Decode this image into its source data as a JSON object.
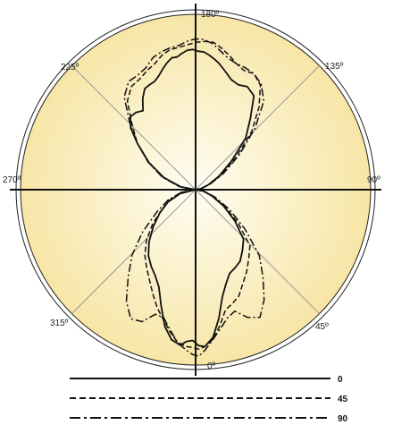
{
  "chart_data": {
    "type": "polar",
    "title": "",
    "angle_labels": [
      {
        "angle": 180,
        "text": "180º"
      },
      {
        "angle": 135,
        "text": "135º"
      },
      {
        "angle": 90,
        "text": "90º"
      },
      {
        "angle": 45,
        "text": "45º"
      },
      {
        "angle": 0,
        "text": "0º"
      },
      {
        "angle": 315,
        "text": "315º"
      },
      {
        "angle": 270,
        "text": "270º"
      },
      {
        "angle": 225,
        "text": "225º"
      }
    ],
    "grid_lines_degrees": [
      0,
      45,
      90,
      135
    ],
    "series": [
      {
        "name": "0",
        "style": "solid",
        "lobes": {
          "top": [
            [
              0,
              0
            ],
            [
              6,
              10
            ],
            [
              12,
              26
            ],
            [
              18,
              50
            ],
            [
              24,
              80
            ],
            [
              30,
              118
            ],
            [
              36,
              138
            ],
            [
              42,
              160
            ],
            [
              48,
              158
            ],
            [
              54,
              148
            ],
            [
              60,
              145
            ],
            [
              66,
              148
            ],
            [
              72,
              152
            ],
            [
              76,
              154
            ],
            [
              80,
              156
            ],
            [
              84,
              158
            ],
            [
              88,
              158
            ],
            [
              92,
              160
            ],
            [
              96,
              160
            ],
            [
              100,
              158
            ],
            [
              104,
              156
            ],
            [
              108,
              158
            ],
            [
              112,
              156
            ],
            [
              116,
              153
            ],
            [
              120,
              150
            ],
            [
              124,
              149
            ],
            [
              128,
              152
            ],
            [
              132,
              155
            ],
            [
              136,
              150
            ],
            [
              140,
              140
            ],
            [
              144,
              150
            ],
            [
              148,
              157
            ],
            [
              152,
              150
            ],
            [
              156,
              130
            ],
            [
              162,
              100
            ],
            [
              168,
              66
            ],
            [
              174,
              30
            ],
            [
              180,
              0
            ]
          ],
          "bottom": [
            [
              0,
              0
            ],
            [
              6,
              16
            ],
            [
              12,
              34
            ],
            [
              18,
              60
            ],
            [
              24,
              88
            ],
            [
              30,
              113
            ],
            [
              36,
              118
            ],
            [
              42,
              122
            ],
            [
              48,
              120
            ],
            [
              54,
              118
            ],
            [
              60,
              124
            ],
            [
              66,
              134
            ],
            [
              72,
              154
            ],
            [
              78,
              172
            ],
            [
              84,
              180
            ],
            [
              88,
              178
            ],
            [
              92,
              172
            ],
            [
              96,
              174
            ],
            [
              100,
              180
            ],
            [
              106,
              178
            ],
            [
              112,
              168
            ],
            [
              118,
              150
            ],
            [
              124,
              134
            ],
            [
              130,
              128
            ],
            [
              136,
              126
            ],
            [
              142,
              122
            ],
            [
              148,
              112
            ],
            [
              154,
              96
            ],
            [
              160,
              78
            ],
            [
              166,
              58
            ],
            [
              172,
              32
            ],
            [
              180,
              0
            ]
          ]
        }
      },
      {
        "name": "45",
        "style": "dashed",
        "lobes": {
          "top": [
            [
              0,
              0
            ],
            [
              6,
              12
            ],
            [
              12,
              30
            ],
            [
              18,
              56
            ],
            [
              24,
              90
            ],
            [
              30,
              132
            ],
            [
              36,
              160
            ],
            [
              42,
              178
            ],
            [
              48,
              178
            ],
            [
              54,
              168
            ],
            [
              60,
              166
            ],
            [
              66,
              168
            ],
            [
              72,
              170
            ],
            [
              78,
              172
            ],
            [
              84,
              170
            ],
            [
              90,
              168
            ],
            [
              96,
              166
            ],
            [
              102,
              166
            ],
            [
              108,
              168
            ],
            [
              114,
              168
            ],
            [
              120,
              166
            ],
            [
              126,
              168
            ],
            [
              132,
              170
            ],
            [
              138,
              176
            ],
            [
              144,
              172
            ],
            [
              150,
              150
            ],
            [
              156,
              130
            ],
            [
              162,
              102
            ],
            [
              168,
              68
            ],
            [
              174,
              32
            ],
            [
              180,
              0
            ]
          ],
          "bottom": [
            [
              0,
              0
            ],
            [
              6,
              16
            ],
            [
              12,
              36
            ],
            [
              18,
              64
            ],
            [
              24,
              96
            ],
            [
              30,
              128
            ],
            [
              36,
              134
            ],
            [
              42,
              140
            ],
            [
              48,
              144
            ],
            [
              54,
              150
            ],
            [
              60,
              150
            ],
            [
              66,
              150
            ],
            [
              72,
              162
            ],
            [
              78,
              174
            ],
            [
              84,
              180
            ],
            [
              88,
              182
            ],
            [
              92,
              180
            ],
            [
              96,
              180
            ],
            [
              102,
              178
            ],
            [
              108,
              170
            ],
            [
              114,
              162
            ],
            [
              120,
              156
            ],
            [
              126,
              148
            ],
            [
              132,
              140
            ],
            [
              138,
              134
            ],
            [
              144,
              128
            ],
            [
              150,
              116
            ],
            [
              156,
              96
            ],
            [
              162,
              72
            ],
            [
              168,
              52
            ],
            [
              174,
              28
            ],
            [
              180,
              0
            ]
          ]
        }
      },
      {
        "name": "90",
        "style": "dashdot",
        "lobes": {
          "top": [
            [
              0,
              0
            ],
            [
              6,
              12
            ],
            [
              12,
              30
            ],
            [
              18,
              60
            ],
            [
              24,
              98
            ],
            [
              30,
              140
            ],
            [
              36,
              172
            ],
            [
              42,
              180
            ],
            [
              48,
              178
            ],
            [
              54,
              172
            ],
            [
              60,
              166
            ],
            [
              66,
              164
            ],
            [
              72,
              166
            ],
            [
              78,
              170
            ],
            [
              84,
              172
            ],
            [
              90,
              172
            ],
            [
              96,
              170
            ],
            [
              102,
              168
            ],
            [
              108,
              170
            ],
            [
              114,
              172
            ],
            [
              120,
              174
            ],
            [
              126,
              172
            ],
            [
              132,
              176
            ],
            [
              138,
              184
            ],
            [
              144,
              180
            ],
            [
              150,
              156
            ],
            [
              156,
              130
            ],
            [
              162,
              102
            ],
            [
              168,
              70
            ],
            [
              174,
              34
            ],
            [
              180,
              0
            ]
          ],
          "bottom": [
            [
              0,
              0
            ],
            [
              6,
              18
            ],
            [
              12,
              40
            ],
            [
              18,
              72
            ],
            [
              24,
              110
            ],
            [
              30,
              150
            ],
            [
              36,
              170
            ],
            [
              42,
              188
            ],
            [
              48,
              196
            ],
            [
              54,
              180
            ],
            [
              60,
              160
            ],
            [
              66,
              160
            ],
            [
              72,
              166
            ],
            [
              78,
              174
            ],
            [
              84,
              184
            ],
            [
              88,
              190
            ],
            [
              92,
              188
            ],
            [
              96,
              184
            ],
            [
              102,
              178
            ],
            [
              108,
              168
            ],
            [
              114,
              160
            ],
            [
              120,
              164
            ],
            [
              126,
              186
            ],
            [
              132,
              198
            ],
            [
              138,
              190
            ],
            [
              144,
              170
            ],
            [
              150,
              150
            ],
            [
              156,
              118
            ],
            [
              162,
              84
            ],
            [
              168,
              58
            ],
            [
              174,
              30
            ],
            [
              180,
              0
            ]
          ]
        }
      }
    ],
    "legend": {
      "placement": "bottom-right",
      "items": [
        {
          "label": "0",
          "style": "solid"
        },
        {
          "label": "45",
          "style": "dashed"
        },
        {
          "label": "90",
          "style": "dashdot"
        }
      ]
    },
    "colors": {
      "disk_center": "#fffdf2",
      "disk_edge": "#f7e6a6",
      "line": "#111111",
      "grid": "#9a9a9a"
    }
  }
}
